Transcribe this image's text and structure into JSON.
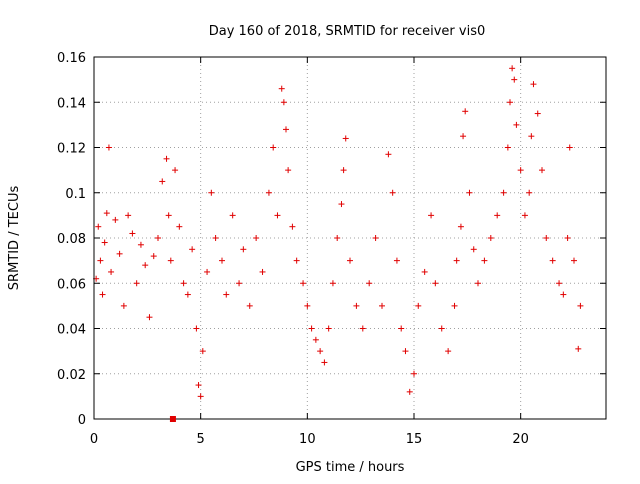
{
  "chart_data": {
    "type": "scatter",
    "title": "Day 160 of 2018, SRMTID for receiver vis0",
    "xlabel": "GPS time / hours",
    "ylabel": "SRMTID / TECUs",
    "xlim": [
      0,
      24
    ],
    "ylim": [
      0,
      0.16
    ],
    "xticks": [
      0,
      5,
      10,
      15,
      20
    ],
    "xtick_labels": [
      "0",
      "5",
      "10",
      "15",
      "20"
    ],
    "yticks": [
      0,
      0.02,
      0.04,
      0.06,
      0.08,
      0.1,
      0.12,
      0.14,
      0.16
    ],
    "ytick_labels": [
      "0",
      "0.02",
      "0.04",
      "0.06",
      "0.08",
      "0.1",
      "0.12",
      "0.14",
      "0.16"
    ],
    "grid": true,
    "marker": "plus",
    "color": "#e00000",
    "x_range_data": [
      0.0,
      22.8
    ],
    "outage_marker": {
      "x": 3.7,
      "y": 0.0
    },
    "series": [
      {
        "name": "vis0",
        "points": [
          [
            0.1,
            0.062
          ],
          [
            0.2,
            0.085
          ],
          [
            0.3,
            0.07
          ],
          [
            0.4,
            0.055
          ],
          [
            0.5,
            0.078
          ],
          [
            0.6,
            0.091
          ],
          [
            0.7,
            0.12
          ],
          [
            0.8,
            0.065
          ],
          [
            1.0,
            0.088
          ],
          [
            1.2,
            0.073
          ],
          [
            1.4,
            0.05
          ],
          [
            1.6,
            0.09
          ],
          [
            1.8,
            0.082
          ],
          [
            2.0,
            0.06
          ],
          [
            2.2,
            0.077
          ],
          [
            2.4,
            0.068
          ],
          [
            2.6,
            0.045
          ],
          [
            2.8,
            0.072
          ],
          [
            3.0,
            0.08
          ],
          [
            3.2,
            0.105
          ],
          [
            3.4,
            0.115
          ],
          [
            3.5,
            0.09
          ],
          [
            3.6,
            0.07
          ],
          [
            3.8,
            0.11
          ],
          [
            4.0,
            0.085
          ],
          [
            4.2,
            0.06
          ],
          [
            4.4,
            0.055
          ],
          [
            4.6,
            0.075
          ],
          [
            4.8,
            0.04
          ],
          [
            4.9,
            0.015
          ],
          [
            5.0,
            0.01
          ],
          [
            5.1,
            0.03
          ],
          [
            5.3,
            0.065
          ],
          [
            5.5,
            0.1
          ],
          [
            5.7,
            0.08
          ],
          [
            6.0,
            0.07
          ],
          [
            6.2,
            0.055
          ],
          [
            6.5,
            0.09
          ],
          [
            6.8,
            0.06
          ],
          [
            7.0,
            0.075
          ],
          [
            7.3,
            0.05
          ],
          [
            7.6,
            0.08
          ],
          [
            7.9,
            0.065
          ],
          [
            8.2,
            0.1
          ],
          [
            8.4,
            0.12
          ],
          [
            8.6,
            0.09
          ],
          [
            8.8,
            0.146
          ],
          [
            8.9,
            0.14
          ],
          [
            9.0,
            0.128
          ],
          [
            9.1,
            0.11
          ],
          [
            9.3,
            0.085
          ],
          [
            9.5,
            0.07
          ],
          [
            9.8,
            0.06
          ],
          [
            10.0,
            0.05
          ],
          [
            10.2,
            0.04
          ],
          [
            10.4,
            0.035
          ],
          [
            10.6,
            0.03
          ],
          [
            10.8,
            0.025
          ],
          [
            11.0,
            0.04
          ],
          [
            11.2,
            0.06
          ],
          [
            11.4,
            0.08
          ],
          [
            11.6,
            0.095
          ],
          [
            11.7,
            0.11
          ],
          [
            11.8,
            0.124
          ],
          [
            12.0,
            0.07
          ],
          [
            12.3,
            0.05
          ],
          [
            12.6,
            0.04
          ],
          [
            12.9,
            0.06
          ],
          [
            13.2,
            0.08
          ],
          [
            13.5,
            0.05
          ],
          [
            13.8,
            0.117
          ],
          [
            14.0,
            0.1
          ],
          [
            14.2,
            0.07
          ],
          [
            14.4,
            0.04
          ],
          [
            14.6,
            0.03
          ],
          [
            14.8,
            0.012
          ],
          [
            15.0,
            0.02
          ],
          [
            15.2,
            0.05
          ],
          [
            15.5,
            0.065
          ],
          [
            15.8,
            0.09
          ],
          [
            16.0,
            0.06
          ],
          [
            16.3,
            0.04
          ],
          [
            16.6,
            0.03
          ],
          [
            16.9,
            0.05
          ],
          [
            17.0,
            0.07
          ],
          [
            17.2,
            0.085
          ],
          [
            17.3,
            0.125
          ],
          [
            17.4,
            0.136
          ],
          [
            17.6,
            0.1
          ],
          [
            17.8,
            0.075
          ],
          [
            18.0,
            0.06
          ],
          [
            18.3,
            0.07
          ],
          [
            18.6,
            0.08
          ],
          [
            18.9,
            0.09
          ],
          [
            19.2,
            0.1
          ],
          [
            19.4,
            0.12
          ],
          [
            19.5,
            0.14
          ],
          [
            19.6,
            0.155
          ],
          [
            19.7,
            0.15
          ],
          [
            19.8,
            0.13
          ],
          [
            20.0,
            0.11
          ],
          [
            20.2,
            0.09
          ],
          [
            20.4,
            0.1
          ],
          [
            20.5,
            0.125
          ],
          [
            20.6,
            0.148
          ],
          [
            20.8,
            0.135
          ],
          [
            21.0,
            0.11
          ],
          [
            21.2,
            0.08
          ],
          [
            21.5,
            0.07
          ],
          [
            21.8,
            0.06
          ],
          [
            22.0,
            0.055
          ],
          [
            22.2,
            0.08
          ],
          [
            22.3,
            0.12
          ],
          [
            22.5,
            0.07
          ],
          [
            22.7,
            0.031
          ],
          [
            22.8,
            0.05
          ]
        ]
      }
    ]
  }
}
